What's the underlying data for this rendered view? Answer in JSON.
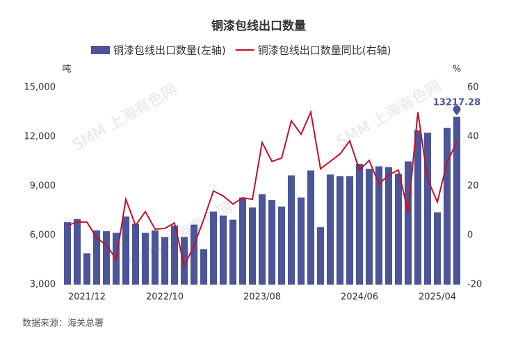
{
  "chart_data": {
    "type": "bar-line",
    "title": "铜漆包线出口数量",
    "y_unit": "吨",
    "y2_unit": "%",
    "source": "数据来源：海关总署",
    "watermark": "SMM 上海有色网",
    "categories": [
      null,
      null,
      "2021/12",
      null,
      null,
      null,
      null,
      null,
      null,
      null,
      "2022/10",
      null,
      null,
      null,
      null,
      null,
      null,
      null,
      null,
      null,
      "2023/08",
      null,
      null,
      null,
      null,
      null,
      null,
      null,
      null,
      null,
      "2024/06",
      null,
      null,
      null,
      null,
      null,
      null,
      null,
      "2025/04",
      null,
      null
    ],
    "series": [
      {
        "name": "铜漆包线出口数量(左轴)",
        "type": "bar",
        "color": "#4b5597",
        "label_max": true,
        "values": [
          6800,
          7000,
          4900,
          6300,
          6250,
          6150,
          7150,
          6700,
          6150,
          6300,
          5900,
          6600,
          5900,
          6650,
          5150,
          7450,
          7200,
          6950,
          8300,
          7700,
          8500,
          8150,
          7750,
          9650,
          8300,
          9950,
          6500,
          9700,
          9600,
          9600,
          10350,
          10050,
          10200,
          10150,
          9750,
          10500,
          12400,
          12250,
          7400,
          12550,
          13217.28
        ]
      },
      {
        "name": "铜漆包线出口数量同比(右轴)",
        "type": "line",
        "axis": "y2",
        "color": "#c0102a",
        "values": [
          4,
          5.4,
          5.4,
          -1,
          -4,
          -9.6,
          14.6,
          4,
          9.6,
          2.5,
          2.8,
          5,
          -12.4,
          -4.2,
          6.5,
          18,
          16,
          12.7,
          15.2,
          14.6,
          37.7,
          30,
          31.3,
          46.5,
          41,
          50,
          27,
          30,
          33,
          38.3,
          26.5,
          30.4,
          20.8,
          24.5,
          26.5,
          9.3,
          50,
          22.8,
          13.5,
          29.6,
          38
        ]
      }
    ],
    "ylim": [
      3000,
      15000
    ],
    "yticks": [
      {
        "value": 3000,
        "label": "3,000"
      },
      {
        "value": 6000,
        "label": "6,000"
      },
      {
        "value": 9000,
        "label": "9,000"
      },
      {
        "value": 12000,
        "label": "12,000"
      },
      {
        "value": 15000,
        "label": "15,000"
      }
    ],
    "y2lim": [
      -20,
      60
    ],
    "y2ticks": [
      -20,
      0,
      20,
      40,
      60
    ],
    "grid": false
  }
}
